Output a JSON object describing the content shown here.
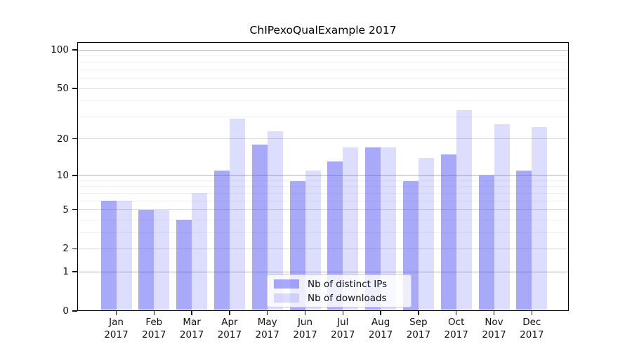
{
  "chart_data": {
    "type": "bar",
    "title": "ChIPexoQualExample 2017",
    "categories": [
      "Jan",
      "Feb",
      "Mar",
      "Apr",
      "May",
      "Jun",
      "Jul",
      "Aug",
      "Sep",
      "Oct",
      "Nov",
      "Dec"
    ],
    "year_label": "2017",
    "series": [
      {
        "name": "Nb of distinct IPs",
        "values": [
          6,
          5,
          4,
          11,
          18,
          9,
          13,
          17,
          9,
          15,
          10,
          11
        ]
      },
      {
        "name": "Nb of downloads",
        "values": [
          6,
          5,
          7,
          29,
          23,
          11,
          17,
          17,
          14,
          34,
          26,
          25
        ]
      }
    ],
    "y_scale": "log10(1+x)",
    "y_ticks": [
      0,
      1,
      2,
      5,
      10,
      20,
      50,
      100
    ],
    "ylim": [
      0,
      114
    ],
    "grid": "horizontal",
    "gridline_values": {
      "dark": [
        1,
        10,
        100
      ],
      "light": [
        2,
        5,
        20,
        50
      ],
      "minor": [
        3,
        4,
        6,
        7,
        8,
        9,
        30,
        40,
        60,
        70,
        80,
        90
      ]
    },
    "colors": {
      "bar_base": "#4040f4",
      "alpha_distinct_ips": 0.45,
      "alpha_downloads": 0.18,
      "grid_dark": "#b0b0b0",
      "grid_light": "#dcdcdc",
      "grid_minor": "#f2f2f2",
      "axis": "#000000"
    },
    "legend_position": "inside-bottom-center"
  }
}
